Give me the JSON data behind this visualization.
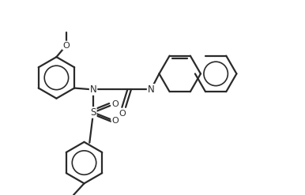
{
  "bg_color": "#ffffff",
  "line_color": "#2a2a2a",
  "line_width": 1.6,
  "figsize": [
    3.86,
    2.47
  ],
  "dpi": 100,
  "xlim": [
    0,
    10
  ],
  "ylim": [
    0,
    6.4
  ]
}
